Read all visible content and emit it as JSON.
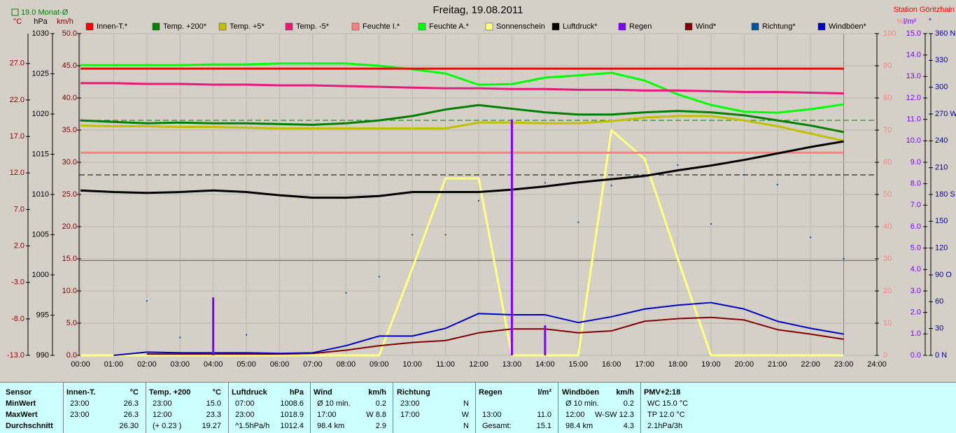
{
  "chart_data": {
    "type": "line",
    "title": "Freitag, 19.08.2011",
    "subtitle": "Station Göritzhain",
    "annotations": [
      "19.0 Monat-Ø"
    ],
    "categories": [
      "00:00",
      "01:00",
      "02:00",
      "03:00",
      "04:00",
      "05:00",
      "06:00",
      "07:00",
      "08:00",
      "09:00",
      "10:00",
      "11:00",
      "12:00",
      "13:00",
      "14:00",
      "15:00",
      "16:00",
      "17:00",
      "18:00",
      "19:00",
      "20:00",
      "21:00",
      "22:00",
      "23:00",
      "24:00"
    ],
    "axes": [
      {
        "label": "°C",
        "lim": [
          -13,
          31.1
        ],
        "color": "#a00000",
        "ticks": [
          {
            "value": -13,
            "label": "-13.0"
          },
          {
            "value": -8,
            "label": "-8.0"
          },
          {
            "value": -3,
            "label": "-3.0"
          },
          {
            "value": 2,
            "label": "2.0"
          },
          {
            "value": 7,
            "label": "7.0"
          },
          {
            "value": 12,
            "label": "12.0"
          },
          {
            "value": 17,
            "label": "17.0"
          },
          {
            "value": 22,
            "label": "22.0"
          },
          {
            "value": 27,
            "label": "27.0"
          }
        ]
      },
      {
        "label": "hPa",
        "lim": [
          990,
          1030
        ],
        "color": "#000000",
        "ticks": [
          990,
          995,
          1000,
          1005,
          1010,
          1015,
          1020,
          1025,
          1030
        ]
      },
      {
        "label": "km/h",
        "lim": [
          0,
          50
        ],
        "color": "#800000",
        "grid": true,
        "ticks": [
          {
            "value": 0,
            "label": "0.0"
          },
          {
            "value": 5,
            "label": "5.0"
          },
          {
            "value": 10,
            "label": "10.0"
          },
          {
            "value": 15,
            "label": "15.0"
          },
          {
            "value": 20,
            "label": "20.0"
          },
          {
            "value": 25,
            "label": "25.0"
          },
          {
            "value": 30,
            "label": "30.0"
          },
          {
            "value": 35,
            "label": "35.0"
          },
          {
            "value": 40,
            "label": "40.0"
          },
          {
            "value": 45,
            "label": "45.0"
          },
          {
            "value": 50,
            "label": "50.0"
          }
        ]
      },
      {
        "label": "%",
        "lim": [
          0,
          100
        ],
        "color": "#ff8080",
        "ticks": [
          0,
          10,
          20,
          30,
          40,
          50,
          60,
          70,
          80,
          90,
          100
        ]
      },
      {
        "label": "l/m²",
        "lim": [
          0,
          15
        ],
        "color": "#8000ff",
        "ticks": [
          {
            "value": 0,
            "label": "0.0"
          },
          {
            "value": 1,
            "label": "1.0"
          },
          {
            "value": 2,
            "label": "2.0"
          },
          {
            "value": 3,
            "label": "3.0"
          },
          {
            "value": 4,
            "label": "4.0"
          },
          {
            "value": 5,
            "label": "5.0"
          },
          {
            "value": 6,
            "label": "6.0"
          },
          {
            "value": 7,
            "label": "7.0"
          },
          {
            "value": 8,
            "label": "8.0"
          },
          {
            "value": 9,
            "label": "9.0"
          },
          {
            "value": 10,
            "label": "10.0"
          },
          {
            "value": 11,
            "label": "11.0"
          },
          {
            "value": 12,
            "label": "12.0"
          },
          {
            "value": 13,
            "label": "13.0"
          },
          {
            "value": 14,
            "label": "14.0"
          },
          {
            "value": 15,
            "label": "15.0"
          }
        ]
      },
      {
        "label": "°",
        "lim": [
          0,
          360
        ],
        "color": "#0000a0",
        "ticks": [
          {
            "value": 0,
            "label": "0 N"
          },
          30,
          60,
          {
            "value": 90,
            "label": "90 O"
          },
          120,
          150,
          {
            "value": 180,
            "label": "180 S"
          },
          210,
          240,
          {
            "value": 270,
            "label": "270 W"
          },
          300,
          330,
          {
            "value": 360,
            "label": "360 N"
          }
        ]
      }
    ],
    "series": [
      {
        "name": "Innen-T.*",
        "color": "#ff0000",
        "axis": "°C",
        "values": [
          26.3,
          26.3,
          26.3,
          26.3,
          26.3,
          26.3,
          26.3,
          26.3,
          26.3,
          26.3,
          26.3,
          26.3,
          26.3,
          26.3,
          26.3,
          26.3,
          26.3,
          26.3,
          26.3,
          26.3,
          26.3,
          26.3,
          26.3,
          26.3,
          null
        ]
      },
      {
        "name": "Temp. +200*",
        "color": "#008000",
        "axis": "°C",
        "values": [
          19.2,
          19.0,
          18.8,
          18.9,
          18.8,
          18.8,
          18.7,
          18.6,
          18.8,
          19.2,
          19.8,
          20.7,
          21.3,
          20.8,
          20.3,
          20.0,
          20.0,
          20.3,
          20.5,
          20.3,
          19.9,
          19.2,
          18.5,
          17.6,
          null
        ]
      },
      {
        "name": "Temp. +5*",
        "color": "#c0c000",
        "axis": "°C",
        "values": [
          18.5,
          18.4,
          18.4,
          18.3,
          18.3,
          18.2,
          18.1,
          18.1,
          18.1,
          18.1,
          18.1,
          18.1,
          18.9,
          18.9,
          18.8,
          18.8,
          19.1,
          19.6,
          19.8,
          19.8,
          19.2,
          18.4,
          17.4,
          16.4,
          null
        ]
      },
      {
        "name": "Temp. -5*",
        "color": "#e8187c",
        "axis": "°C",
        "values": [
          24.3,
          24.3,
          24.2,
          24.2,
          24.1,
          24.1,
          24.0,
          24.0,
          23.9,
          23.8,
          23.7,
          23.6,
          23.6,
          23.5,
          23.5,
          23.4,
          23.4,
          23.3,
          23.3,
          23.2,
          23.1,
          23.1,
          23.0,
          22.9,
          null
        ]
      },
      {
        "name": "Feuchte I.*",
        "color": "#ff8080",
        "axis": "%",
        "values": [
          63,
          63,
          63,
          63,
          63,
          63,
          63,
          63,
          63,
          63,
          63,
          63,
          63,
          63,
          63,
          63,
          63,
          63,
          63,
          63,
          63,
          63,
          63,
          63,
          null
        ]
      },
      {
        "name": "Feuchte A.*",
        "color": "#00ff00",
        "axis": "%",
        "values": [
          90.2,
          90.2,
          90.2,
          90.2,
          90.4,
          90.4,
          90.7,
          90.7,
          90.7,
          90.0,
          88.9,
          87.6,
          84.1,
          84.3,
          86.3,
          87.0,
          87.8,
          85.4,
          81.1,
          77.8,
          75.7,
          75.4,
          76.5,
          78.0,
          null
        ]
      },
      {
        "name": "Sonnenschein",
        "color": "#ffff80",
        "axis": "%",
        "values": [
          0,
          0,
          0,
          0,
          0,
          0,
          0,
          0,
          0,
          0,
          27,
          55,
          55,
          0,
          0,
          0,
          70,
          61,
          30,
          0,
          0,
          0,
          0,
          0,
          null
        ]
      },
      {
        "name": "Luftdruck*",
        "color": "#000000",
        "axis": "hPa",
        "values": [
          1010.5,
          1010.3,
          1010.2,
          1010.3,
          1010.5,
          1010.3,
          1009.9,
          1009.6,
          1009.6,
          1009.8,
          1010.3,
          1010.3,
          1010.3,
          1010.6,
          1011.0,
          1011.5,
          1011.9,
          1012.3,
          1013.0,
          1013.6,
          1014.3,
          1015.1,
          1015.9,
          1016.6,
          null
        ]
      },
      {
        "name": "Regen",
        "color": "#8000ff",
        "axis": "l/m²",
        "type": "bar",
        "values": [
          null,
          null,
          null,
          null,
          2.7,
          null,
          null,
          null,
          null,
          null,
          null,
          null,
          null,
          11.0,
          1.4,
          null,
          null,
          null,
          null,
          null,
          null,
          null,
          null,
          null,
          null
        ]
      },
      {
        "name": "Wind*",
        "color": "#800000",
        "axis": "km/h",
        "values": [
          null,
          null,
          0.2,
          0.2,
          0.2,
          0.2,
          0.2,
          0.3,
          0.8,
          1.5,
          2.0,
          2.3,
          3.5,
          4.1,
          4.1,
          3.5,
          3.8,
          5.3,
          5.7,
          5.9,
          5.5,
          4.0,
          3.3,
          2.5,
          null
        ]
      },
      {
        "name": "Richtung*",
        "color": "#0050a0",
        "axis": "°",
        "type": "scatter",
        "values": [
          null,
          null,
          61,
          20,
          null,
          23,
          null,
          null,
          70,
          88,
          135,
          135,
          173,
          null,
          193,
          149,
          190,
          200,
          213,
          147,
          202,
          191,
          132,
          108,
          null
        ]
      },
      {
        "name": "Windböen*",
        "color": "#0000c0",
        "axis": "km/h",
        "values": [
          null,
          0.0,
          0.5,
          0.4,
          0.4,
          0.4,
          0.3,
          0.4,
          1.5,
          3.0,
          3.0,
          4.2,
          6.5,
          6.3,
          6.3,
          5.1,
          6.0,
          7.2,
          7.8,
          8.2,
          7.2,
          5.3,
          4.2,
          3.3,
          null
        ]
      }
    ]
  },
  "table": {
    "row_labels": [
      "Sensor",
      "MinWert",
      "MaxWert",
      "Durchschnitt"
    ],
    "columns": [
      {
        "name": "Innen-T.",
        "unit": "°C",
        "rows": [
          {
            "left": "23:00",
            "right": "26.3"
          },
          {
            "left": "23:00",
            "right": "26.3"
          },
          {
            "right": "26.30"
          }
        ]
      },
      {
        "name": "Temp. +200",
        "unit": "°C",
        "rows": [
          {
            "left": "23:00",
            "right": "15.0"
          },
          {
            "left": "12:00",
            "right": "23.3"
          },
          {
            "left": "(+ 0.23 )",
            "right": "19.27"
          }
        ]
      },
      {
        "name": "Luftdruck",
        "unit": "hPa",
        "rows": [
          {
            "left": "07:00",
            "right": "1008.6"
          },
          {
            "left": "23:00",
            "right": "1018.9"
          },
          {
            "left": "^1.5hPa/h",
            "right": "1012.4"
          }
        ]
      },
      {
        "name": "Wind",
        "unit": "km/h",
        "rows": [
          {
            "left": "Ø 10 min.",
            "right": "0.2"
          },
          {
            "left": "17:00",
            "right": "W 8.8"
          },
          {
            "left": "98.4 km",
            "right": "2.9"
          }
        ]
      },
      {
        "name": "Richtung",
        "rows": [
          {
            "left": "23:00",
            "right": "N"
          },
          {
            "left": "17:00",
            "right": "W"
          },
          {
            "right": "N"
          }
        ]
      },
      {
        "name": "Regen",
        "unit": "l/m²",
        "rows": [
          {},
          {
            "left": "13:00",
            "right": "11.0"
          },
          {
            "left": "Gesamt:",
            "right": "15.1"
          }
        ]
      },
      {
        "name": "Windböen",
        "unit": "km/h",
        "rows": [
          {
            "left": "Ø 10 min.",
            "right": "0.2"
          },
          {
            "left": "12:00",
            "right": "W-SW 12.3"
          },
          {
            "left": "98.4 km",
            "right": "4.3"
          }
        ]
      },
      {
        "name": "PMV+2:18",
        "rows": [
          {
            "left": "WC 15.0 °C"
          },
          {
            "left": "TP 12.0 °C"
          },
          {
            "left": "2.1hPa/3h"
          }
        ]
      }
    ]
  }
}
